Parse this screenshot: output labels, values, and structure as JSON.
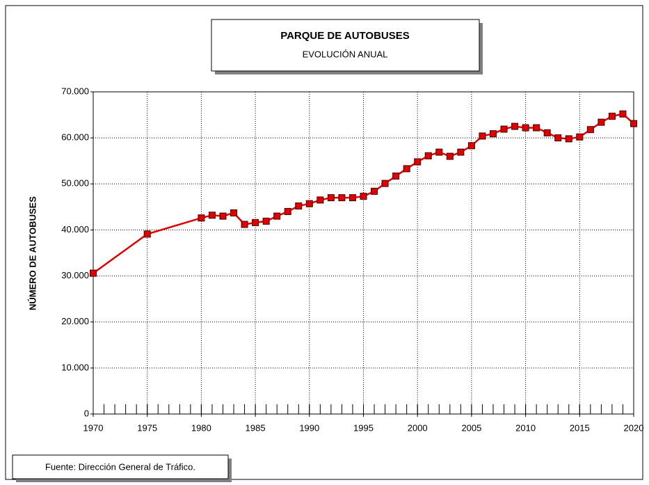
{
  "chart_data": {
    "type": "line",
    "title": "PARQUE DE AUTOBUSES",
    "subtitle": "EVOLUCIÓN ANUAL",
    "y_label": "NÚMERO DE AUTOBUSES",
    "source": "Fuente: Dirección General de Tráfico.",
    "x": [
      1970,
      1975,
      1980,
      1981,
      1982,
      1983,
      1984,
      1985,
      1986,
      1987,
      1988,
      1989,
      1990,
      1991,
      1992,
      1993,
      1994,
      1995,
      1996,
      1997,
      1998,
      1999,
      2000,
      2001,
      2002,
      2003,
      2004,
      2005,
      2006,
      2007,
      2008,
      2009,
      2010,
      2011,
      2012,
      2013,
      2014,
      2015,
      2016,
      2017,
      2018,
      2019,
      2020
    ],
    "series": [
      {
        "name": "Autobuses",
        "color": "#e00000",
        "values": [
          30600,
          39100,
          42600,
          43200,
          43000,
          43700,
          41200,
          41600,
          41900,
          43000,
          44000,
          45200,
          45700,
          46500,
          47000,
          47000,
          47000,
          47300,
          48400,
          50100,
          51700,
          53300,
          54800,
          56100,
          56900,
          56000,
          56900,
          58300,
          60400,
          60900,
          61900,
          62500,
          62200,
          62200,
          61100,
          60000,
          59800,
          60200,
          61800,
          63400,
          64700,
          65200,
          63100
        ]
      }
    ],
    "xlim": [
      1970,
      2020
    ],
    "xticks": [
      1970,
      1975,
      1980,
      1985,
      1990,
      1995,
      2000,
      2005,
      2010,
      2015,
      2020
    ],
    "ylim": [
      0,
      70000
    ],
    "yticks": [
      0,
      {
        "value": 10000,
        "label": "10.000"
      },
      {
        "value": 20000,
        "label": "20.000"
      },
      {
        "value": 30000,
        "label": "30.000"
      },
      {
        "value": 40000,
        "label": "40.000"
      },
      {
        "value": 50000,
        "label": "50.000"
      },
      {
        "value": 60000,
        "label": "60.000"
      },
      {
        "value": 70000,
        "label": "70.000"
      }
    ],
    "grid": true
  }
}
